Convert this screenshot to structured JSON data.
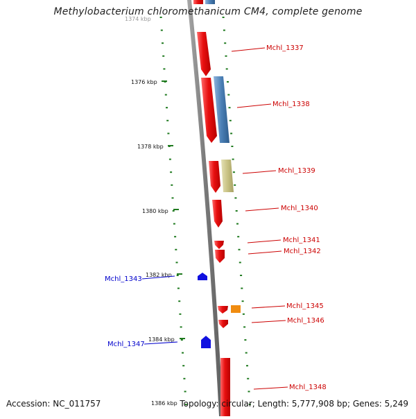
{
  "title": "Methylobacterium chloromethanicum CM4, complete genome",
  "footer": {
    "accession": "Accession: NC_011757",
    "stats": "Topology: circular; Length: 5,777,908 bp; Genes: 5,249"
  },
  "scale_labels": [
    "1374 kbp",
    "1376 kbp",
    "1378 kbp",
    "1380 kbp",
    "1382 kbp",
    "1384 kbp",
    "1386 kbp"
  ],
  "genes": [
    {
      "name": "Mchl_1337",
      "strand": "forward",
      "color": "#ee1c1c"
    },
    {
      "name": "Mchl_1338",
      "strand": "forward",
      "color": "#ee1c1c"
    },
    {
      "name": "Mchl_1339",
      "strand": "forward",
      "color": "#ee1c1c"
    },
    {
      "name": "Mchl_1340",
      "strand": "forward",
      "color": "#ee1c1c"
    },
    {
      "name": "Mchl_1341",
      "strand": "forward",
      "color": "#ee1c1c"
    },
    {
      "name": "Mchl_1342",
      "strand": "forward",
      "color": "#ee1c1c"
    },
    {
      "name": "Mchl_1343",
      "strand": "reverse",
      "color": "#1010e0"
    },
    {
      "name": "Mchl_1345",
      "strand": "forward",
      "color": "#ee1c1c"
    },
    {
      "name": "Mchl_1346",
      "strand": "forward",
      "color": "#ee1c1c"
    },
    {
      "name": "Mchl_1347",
      "strand": "reverse",
      "color": "#1010e0"
    },
    {
      "name": "Mchl_1348",
      "strand": "forward",
      "color": "#ee1c1c"
    }
  ],
  "feature_colors": {
    "cds_forward": "#ee1c1c",
    "cds_reverse": "#1010e0",
    "blue_feature": "#4a7fb5",
    "khaki_feature": "#c8c284",
    "orange_feature": "#f08c10",
    "backbone": "#808080",
    "tick": "#1f7a1f"
  }
}
